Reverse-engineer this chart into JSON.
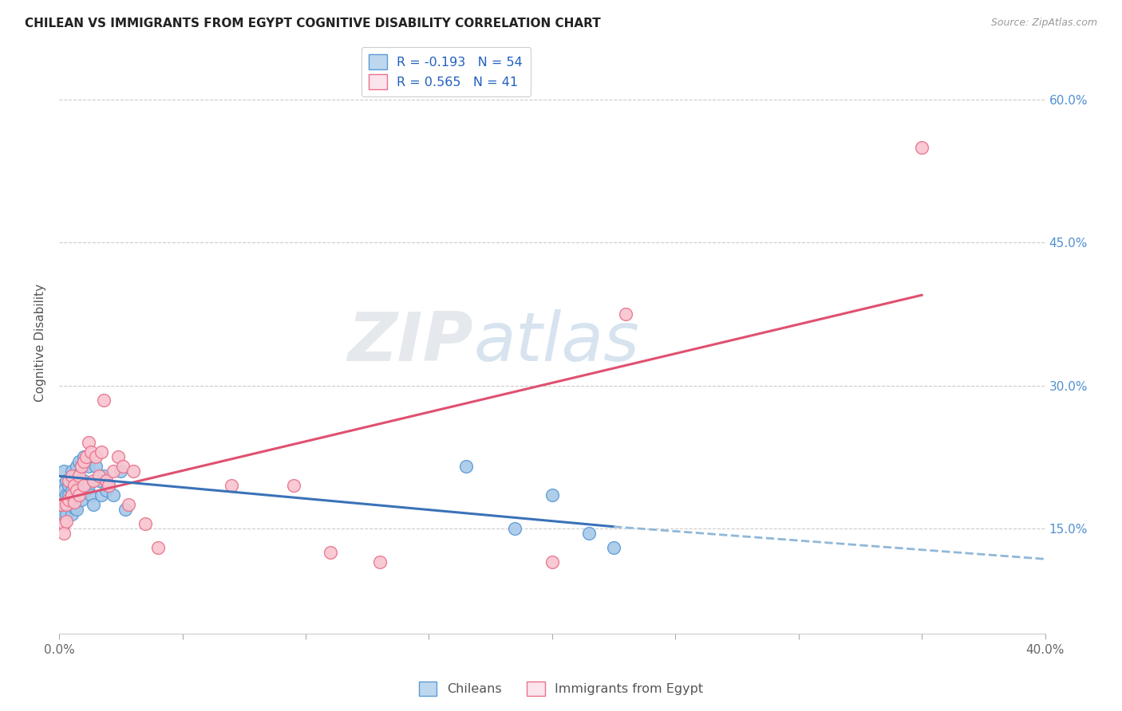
{
  "title": "CHILEAN VS IMMIGRANTS FROM EGYPT COGNITIVE DISABILITY CORRELATION CHART",
  "source": "Source: ZipAtlas.com",
  "ylabel": "Cognitive Disability",
  "ytick_labels": [
    "15.0%",
    "30.0%",
    "45.0%",
    "60.0%"
  ],
  "ytick_values": [
    0.15,
    0.3,
    0.45,
    0.6
  ],
  "xlim": [
    0.0,
    0.4
  ],
  "ylim": [
    0.04,
    0.65
  ],
  "watermark_zip": "ZIP",
  "watermark_atlas": "atlas",
  "legend_chilean": "Chileans",
  "legend_egypt": "Immigrants from Egypt",
  "r_chilean": -0.193,
  "n_chilean": 54,
  "r_egypt": 0.565,
  "n_egypt": 41,
  "blue_dot_face": "#a8c8e8",
  "blue_dot_edge": "#5b9bd5",
  "pink_dot_face": "#f9c4d0",
  "pink_dot_edge": "#e8728a",
  "trendline_blue": "#3a72b8",
  "trendline_pink": "#e05070",
  "trendline_dashed_color": "#90b8d8",
  "legend_blue_face": "#bdd7ee",
  "legend_blue_edge": "#5b9bd5",
  "legend_pink_face": "#fce4ec",
  "legend_pink_edge": "#e8728a",
  "legend_r_color": "#2060c0",
  "chilean_x": [
    0.001,
    0.001,
    0.001,
    0.002,
    0.002,
    0.002,
    0.002,
    0.003,
    0.003,
    0.003,
    0.003,
    0.004,
    0.004,
    0.004,
    0.005,
    0.005,
    0.005,
    0.005,
    0.005,
    0.006,
    0.006,
    0.006,
    0.006,
    0.007,
    0.007,
    0.007,
    0.007,
    0.008,
    0.008,
    0.008,
    0.009,
    0.009,
    0.009,
    0.01,
    0.01,
    0.011,
    0.012,
    0.012,
    0.013,
    0.014,
    0.015,
    0.016,
    0.017,
    0.018,
    0.019,
    0.02,
    0.022,
    0.025,
    0.027,
    0.165,
    0.185,
    0.2,
    0.215,
    0.225
  ],
  "chilean_y": [
    0.195,
    0.18,
    0.17,
    0.21,
    0.19,
    0.175,
    0.165,
    0.2,
    0.185,
    0.175,
    0.165,
    0.195,
    0.185,
    0.175,
    0.21,
    0.2,
    0.19,
    0.178,
    0.165,
    0.205,
    0.195,
    0.185,
    0.172,
    0.215,
    0.205,
    0.185,
    0.17,
    0.22,
    0.2,
    0.185,
    0.215,
    0.198,
    0.18,
    0.225,
    0.2,
    0.19,
    0.215,
    0.195,
    0.185,
    0.175,
    0.215,
    0.2,
    0.185,
    0.205,
    0.19,
    0.195,
    0.185,
    0.21,
    0.17,
    0.215,
    0.15,
    0.185,
    0.145,
    0.13
  ],
  "egypt_x": [
    0.001,
    0.002,
    0.002,
    0.003,
    0.003,
    0.004,
    0.004,
    0.005,
    0.005,
    0.006,
    0.006,
    0.007,
    0.008,
    0.008,
    0.009,
    0.01,
    0.01,
    0.011,
    0.012,
    0.013,
    0.014,
    0.015,
    0.016,
    0.017,
    0.018,
    0.019,
    0.02,
    0.022,
    0.024,
    0.026,
    0.028,
    0.03,
    0.035,
    0.04,
    0.07,
    0.095,
    0.11,
    0.13,
    0.2,
    0.23,
    0.35
  ],
  "egypt_y": [
    0.175,
    0.155,
    0.145,
    0.175,
    0.158,
    0.2,
    0.18,
    0.205,
    0.185,
    0.195,
    0.178,
    0.19,
    0.205,
    0.185,
    0.215,
    0.22,
    0.195,
    0.225,
    0.24,
    0.23,
    0.2,
    0.225,
    0.205,
    0.23,
    0.285,
    0.2,
    0.195,
    0.21,
    0.225,
    0.215,
    0.175,
    0.21,
    0.155,
    0.13,
    0.195,
    0.195,
    0.125,
    0.115,
    0.115,
    0.375,
    0.55
  ],
  "trendline_egypt_x0": 0.0,
  "trendline_egypt_y0": 0.18,
  "trendline_egypt_x1": 0.35,
  "trendline_egypt_y1": 0.395,
  "trendline_chilean_x0": 0.0,
  "trendline_chilean_y0": 0.205,
  "trendline_chilean_x1": 0.225,
  "trendline_chilean_y1": 0.152,
  "trendline_chilean_dash_x1": 0.4,
  "trendline_chilean_dash_y1": 0.118
}
